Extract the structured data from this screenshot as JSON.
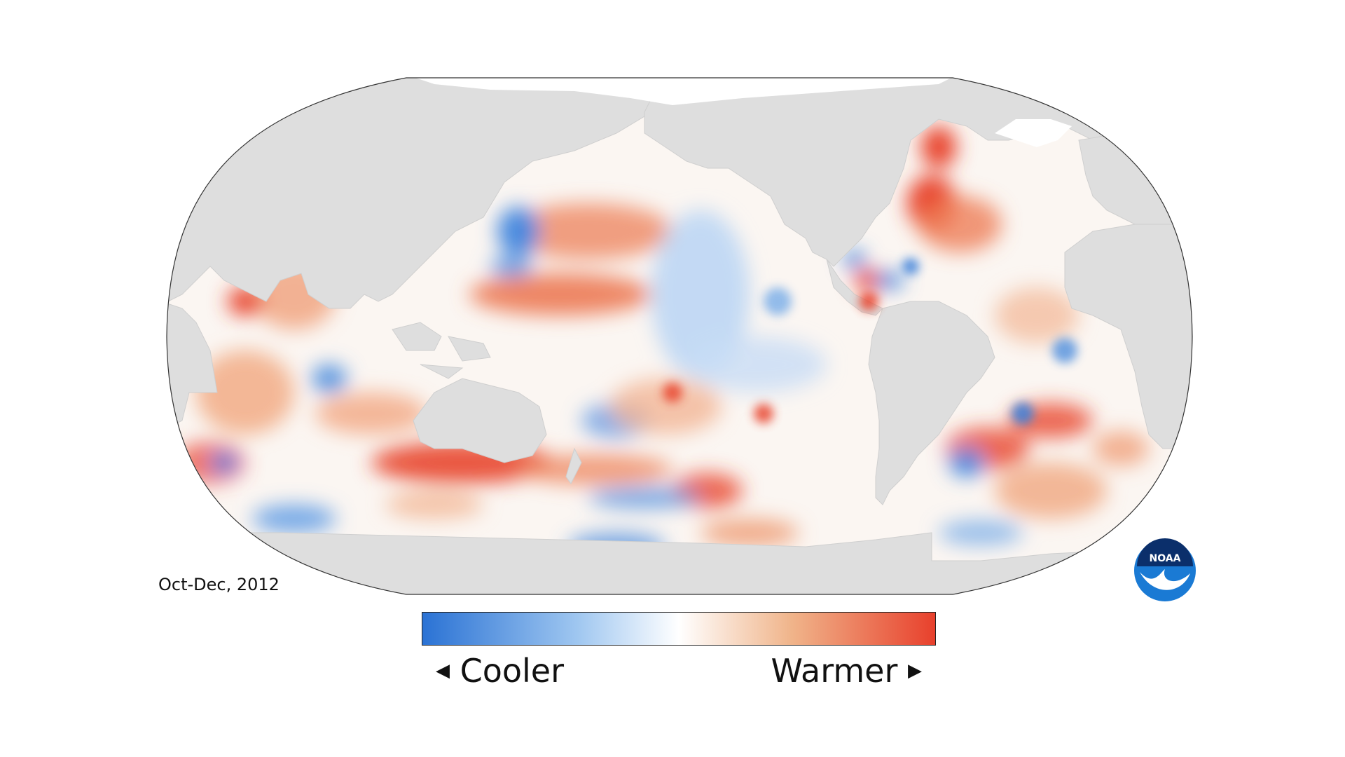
{
  "map": {
    "period": "Oct-Dec, 2012",
    "projection": "robinson",
    "center": "pacific"
  },
  "legend": {
    "low_label": "Cooler",
    "high_label": "Warmer",
    "colors": [
      "#2a72d4",
      "#9ec6f0",
      "#ffffff",
      "#f0b48a",
      "#e8402c"
    ]
  },
  "logo": {
    "text": "NOAA",
    "colors": {
      "outer": "#1a6fc4",
      "inner_top": "#0b2f6b",
      "bird": "#ffffff"
    }
  },
  "colors": {
    "land": "#dedede",
    "outline": "#333333",
    "warm": "#e8452d",
    "cool": "#3a7fd9"
  }
}
